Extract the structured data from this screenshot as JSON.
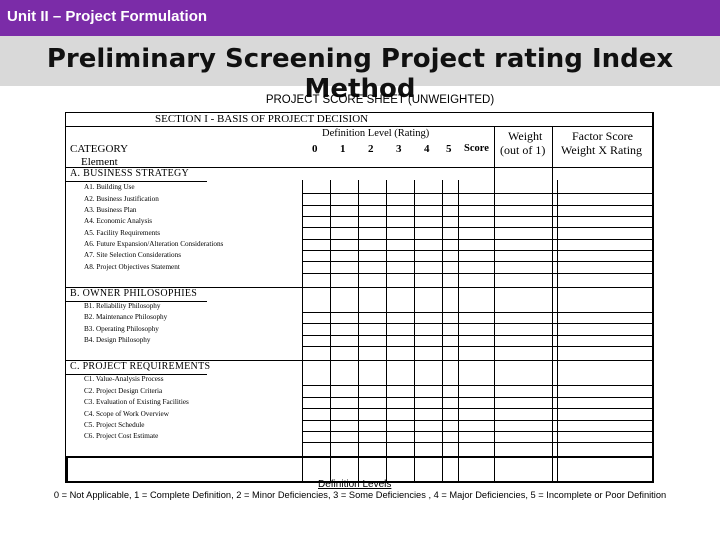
{
  "header": {
    "unit": "Unit II – Project Formulation",
    "title": "Preliminary Screening Project rating Index Method"
  },
  "sheet": {
    "title": "PROJECT SCORE SHEET (UNWEIGHTED)",
    "section_title": "SECTION I - BASIS OF PROJECT DECISION",
    "columns": {
      "category": "CATEGORY",
      "element": "Element",
      "definition_level": "Definition Level (Rating)",
      "levels": [
        "0",
        "1",
        "2",
        "3",
        "4",
        "5"
      ],
      "score": "Score",
      "weight": "Weight",
      "weight_sub": "(out of 1)",
      "factor": "Factor Score",
      "factor_sub": "Weight X Rating"
    },
    "sections": [
      {
        "title": "A. BUSINESS STRATEGY",
        "items": [
          "A1. Building Use",
          "A2. Business Justification",
          "A3. Business Plan",
          "A4. Economic Analysis",
          "A5. Facility Requirements",
          "A6. Future Expansion/Alteration Considerations",
          "A7. Site Selection Considerations",
          "A8. Project Objectives Statement"
        ]
      },
      {
        "title": "B. OWNER PHILOSOPHIES",
        "items": [
          "B1. Reliability Philosophy",
          "B2. Maintenance Philosophy",
          "B3. Operating Philosophy",
          "B4. Design Philosophy"
        ]
      },
      {
        "title": "C. PROJECT REQUIREMENTS",
        "items": [
          "C1. Value-Analysis Process",
          "C2. Project Design Criteria",
          "C3. Evaluation of Existing Facilities",
          "C4. Scope of Work Overview",
          "C5. Project Schedule",
          "C6. Project Cost Estimate"
        ]
      }
    ]
  },
  "footer": {
    "definition_levels_label": "Definition Levels",
    "legend": "0 = Not Applicable, 1 = Complete Definition, 2 = Minor Deficiencies, 3 = Some Deficiencies , 4 = Major Deficiencies, 5 = Incomplete or Poor Definition"
  }
}
